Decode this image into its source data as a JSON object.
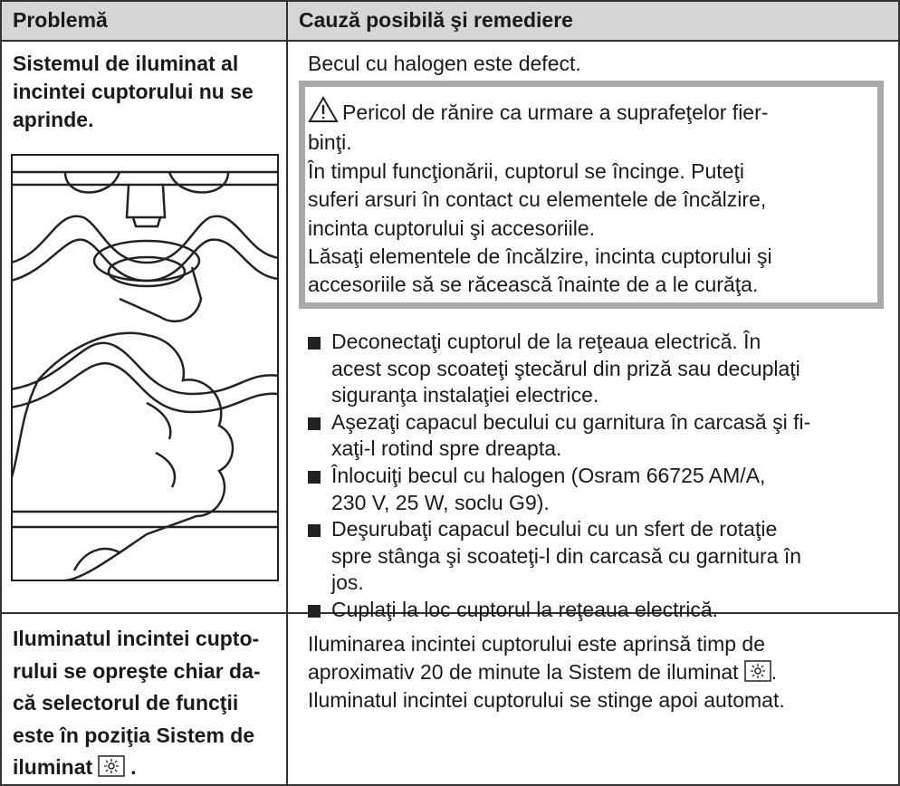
{
  "table": {
    "header": [
      "Problemă",
      "Cauză posibilă şi remediere"
    ],
    "rows": [
      {
        "problem": [
          "Sistemul de iluminat al",
          "incintei cuptorului nu se",
          "aprinde."
        ],
        "cause": "Becul cu halogen este defect.",
        "warning": {
          "title": [
            "Pericol de rănire ca urmare a suprafeţelor fier-",
            "binţi."
          ],
          "body": [
            "În timpul funcţionării, cuptorul se încinge. Puteţi",
            "suferi arsuri în contact cu elementele de încălzire,",
            "incinta cuptorului şi accesoriile.",
            "Lăsaţi elementele de încălzire, incinta cuptorului şi",
            "accesoriile să se răcească înainte de a le curăţa."
          ]
        },
        "steps": [
          [
            "Deconectaţi cuptorul de la reţeaua electrică. În",
            "acest scop scoateţi ştecărul din priză sau decuplaţi",
            "siguranţa instalaţiei electrice."
          ],
          [
            "Aşezaţi capacul becului cu garnitura în carcasă şi fi-",
            "xaţi-l rotind spre dreapta."
          ],
          [
            "Înlocuiţi becul cu halogen (Osram 66725 AM/A,",
            "230 V, 25 W, soclu G9)."
          ],
          [
            "Deşurubaţi capacul becului cu un sfert de rotaţie",
            "spre stânga şi scoateţi-l din carcasă cu garnitura în",
            "jos."
          ],
          [
            "Cuplaţi la loc cuptorul la reţeaua electrică."
          ]
        ]
      },
      {
        "problem": [
          "Iluminatul incintei cupto-",
          "rului se opreşte chiar da-",
          "că selectorul de funcţii",
          "este în poziţia Sistem de",
          "iluminat"
        ],
        "problem_end": ".",
        "cause": [
          "Iluminarea incintei cuptorului este aprinsă timp de",
          "aproximativ 20 de minute la Sistem de iluminat",
          "Iluminatul incintei cuptorului se stinge apoi automat."
        ],
        "cause_end": "."
      }
    ]
  }
}
